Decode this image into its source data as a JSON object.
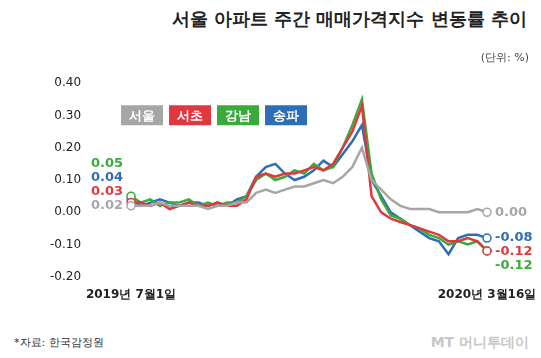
{
  "chart_data": {
    "type": "line",
    "title": "서울 아파트 주간 매매가격지수 변동률 추이",
    "unit": "(단위: %)",
    "source": "*자료: 한국감정원",
    "watermark": "MT 머니투데이",
    "categories": [
      "2019년 7월1일",
      null,
      null,
      null,
      null,
      null,
      null,
      null,
      null,
      null,
      null,
      null,
      null,
      null,
      null,
      null,
      null,
      null,
      null,
      null,
      null,
      null,
      null,
      null,
      null,
      null,
      null,
      null,
      null,
      null,
      null,
      null,
      null,
      null,
      null,
      null,
      null,
      "2020년 3월16일"
    ],
    "series": [
      {
        "name": "서울",
        "color": "#a6a6a6",
        "values": [
          0.02,
          0.02,
          0.02,
          0.03,
          0.02,
          0.02,
          0.02,
          0.02,
          0.01,
          0.02,
          0.02,
          0.03,
          0.03,
          0.06,
          0.07,
          0.06,
          0.07,
          0.08,
          0.08,
          0.09,
          0.1,
          0.09,
          0.11,
          0.14,
          0.2,
          0.1,
          0.07,
          0.04,
          0.02,
          0.01,
          0.01,
          0.01,
          0.0,
          0.0,
          0.0,
          0.0,
          0.01,
          0.0
        ],
        "value_labels": [
          "0.02",
          null,
          null,
          null,
          null,
          null,
          null,
          null,
          null,
          null,
          null,
          null,
          null,
          null,
          null,
          null,
          null,
          null,
          null,
          null,
          null,
          null,
          null,
          null,
          null,
          null,
          null,
          null,
          null,
          null,
          null,
          null,
          null,
          null,
          null,
          null,
          null,
          "0.00"
        ]
      },
      {
        "name": "서초",
        "color": "#e0383e",
        "values": [
          0.03,
          0.03,
          0.02,
          0.03,
          0.01,
          0.02,
          0.03,
          0.02,
          0.02,
          0.03,
          0.02,
          0.02,
          0.04,
          0.11,
          0.12,
          0.11,
          0.12,
          0.12,
          0.13,
          0.14,
          0.13,
          0.15,
          0.2,
          0.25,
          0.33,
          0.05,
          0.0,
          -0.02,
          -0.03,
          -0.04,
          -0.05,
          -0.06,
          -0.07,
          -0.09,
          -0.09,
          -0.08,
          -0.09,
          -0.12
        ],
        "value_labels": [
          "0.03",
          null,
          null,
          null,
          null,
          null,
          null,
          null,
          null,
          null,
          null,
          null,
          null,
          null,
          null,
          null,
          null,
          null,
          null,
          null,
          null,
          null,
          null,
          null,
          null,
          null,
          null,
          null,
          null,
          null,
          null,
          null,
          null,
          null,
          null,
          null,
          null,
          "-0.12"
        ]
      },
      {
        "name": "강남",
        "color": "#3aaa3a",
        "values": [
          0.05,
          0.03,
          0.04,
          0.02,
          0.03,
          0.03,
          0.04,
          0.02,
          0.03,
          0.02,
          0.03,
          0.03,
          0.05,
          0.1,
          0.12,
          0.1,
          0.11,
          0.13,
          0.12,
          0.15,
          0.13,
          0.14,
          0.2,
          0.27,
          0.35,
          0.12,
          0.04,
          -0.01,
          -0.02,
          -0.04,
          -0.05,
          -0.07,
          -0.08,
          -0.1,
          -0.09,
          -0.1,
          -0.09,
          -0.12
        ],
        "value_labels": [
          "0.05",
          null,
          null,
          null,
          null,
          null,
          null,
          null,
          null,
          null,
          null,
          null,
          null,
          null,
          null,
          null,
          null,
          null,
          null,
          null,
          null,
          null,
          null,
          null,
          null,
          null,
          null,
          null,
          null,
          null,
          null,
          null,
          null,
          null,
          null,
          null,
          null,
          "-0.12"
        ]
      },
      {
        "name": "송파",
        "color": "#2f6db5",
        "values": [
          0.04,
          0.02,
          0.03,
          0.04,
          0.03,
          0.02,
          0.03,
          0.03,
          0.02,
          0.03,
          0.02,
          0.04,
          0.05,
          0.11,
          0.14,
          0.15,
          0.12,
          0.1,
          0.11,
          0.13,
          0.16,
          0.14,
          0.18,
          0.22,
          0.27,
          0.1,
          0.05,
          0.0,
          -0.02,
          -0.04,
          -0.06,
          -0.08,
          -0.09,
          -0.13,
          -0.08,
          -0.07,
          -0.07,
          -0.08
        ],
        "value_labels": [
          "0.04",
          null,
          null,
          null,
          null,
          null,
          null,
          null,
          null,
          null,
          null,
          null,
          null,
          null,
          null,
          null,
          null,
          null,
          null,
          null,
          null,
          null,
          null,
          null,
          null,
          null,
          null,
          null,
          null,
          null,
          null,
          null,
          null,
          null,
          null,
          null,
          null,
          "-0.08"
        ]
      }
    ],
    "ylim": [
      -0.2,
      0.4
    ],
    "yticks": [
      {
        "value": -0.2,
        "label": "-0.20"
      },
      {
        "value": -0.1,
        "label": "-0.10"
      },
      {
        "value": 0,
        "label": "0.00"
      },
      {
        "value": 0.1,
        "label": "0.10"
      },
      {
        "value": 0.2,
        "label": "0.20"
      },
      {
        "value": 0.3,
        "label": "0.30"
      },
      {
        "value": 0.4,
        "label": "0.40"
      }
    ],
    "grid": false,
    "legend": "top-left",
    "data_labels": true
  }
}
